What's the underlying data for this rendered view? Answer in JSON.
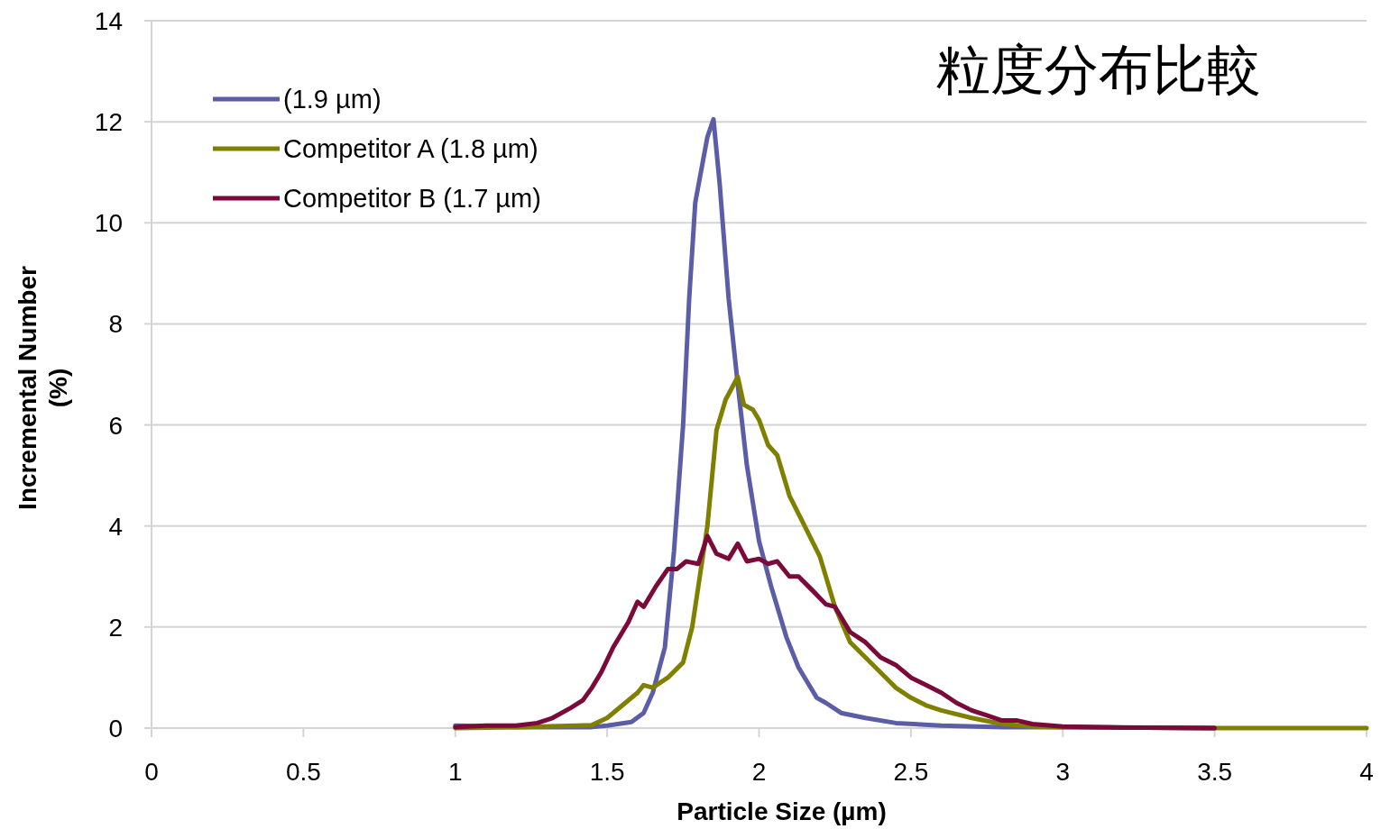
{
  "chart_data": {
    "type": "line",
    "title": "粒度分布比較",
    "xlabel": "Particle Size (µm)",
    "ylabel": "Incremental Number (%)",
    "xlim": [
      0,
      4
    ],
    "xticks": [
      0,
      0.5,
      1,
      1.5,
      2,
      2.5,
      3,
      3.5,
      4
    ],
    "ylim": [
      0,
      14
    ],
    "yticks": [
      0,
      2,
      4,
      6,
      8,
      10,
      12,
      14
    ],
    "grid": "y",
    "legend": "top left",
    "marker": "none",
    "line_style": "solid",
    "series": [
      {
        "name": "(1.9 µm)",
        "color": "#5b5ea6",
        "x": [
          1.0,
          1.2,
          1.45,
          1.5,
          1.58,
          1.62,
          1.65,
          1.69,
          1.72,
          1.75,
          1.77,
          1.79,
          1.83,
          1.85,
          1.87,
          1.9,
          1.93,
          1.96,
          2.0,
          2.04,
          2.09,
          2.13,
          2.19,
          2.22,
          2.27,
          2.35,
          2.45,
          2.6,
          2.8,
          3.0,
          3.5
        ],
        "values": [
          0.05,
          0.02,
          0.02,
          0.05,
          0.12,
          0.3,
          0.7,
          1.6,
          3.5,
          6,
          8.5,
          10.4,
          11.7,
          12.05,
          10.8,
          8.5,
          6.8,
          5.2,
          3.7,
          2.8,
          1.8,
          1.2,
          0.6,
          0.5,
          0.3,
          0.2,
          0.1,
          0.05,
          0.02,
          0.02,
          0
        ]
      },
      {
        "name": "Competitor A (1.8 µm)",
        "color": "#7f7f00",
        "x": [
          1.0,
          1.2,
          1.4,
          1.45,
          1.5,
          1.55,
          1.6,
          1.62,
          1.65,
          1.7,
          1.75,
          1.78,
          1.8,
          1.83,
          1.86,
          1.89,
          1.93,
          1.95,
          1.98,
          2.0,
          2.03,
          2.06,
          2.1,
          2.15,
          2.2,
          2.25,
          2.3,
          2.35,
          2.4,
          2.45,
          2.5,
          2.55,
          2.6,
          2.7,
          2.8,
          2.9,
          3.0,
          3.5,
          4.0
        ],
        "values": [
          0,
          0.02,
          0.05,
          0.06,
          0.2,
          0.45,
          0.7,
          0.85,
          0.8,
          1.0,
          1.3,
          2.0,
          2.8,
          4.0,
          5.9,
          6.5,
          6.95,
          6.4,
          6.3,
          6.1,
          5.6,
          5.4,
          4.6,
          4.0,
          3.4,
          2.4,
          1.7,
          1.4,
          1.1,
          0.8,
          0.6,
          0.45,
          0.35,
          0.2,
          0.08,
          0.03,
          0.02,
          0,
          0
        ]
      },
      {
        "name": "Competitor B (1.7 µm)",
        "color": "#7b0a3a",
        "x": [
          1.0,
          1.1,
          1.2,
          1.27,
          1.32,
          1.38,
          1.42,
          1.45,
          1.48,
          1.52,
          1.55,
          1.57,
          1.6,
          1.62,
          1.66,
          1.7,
          1.73,
          1.76,
          1.8,
          1.83,
          1.86,
          1.9,
          1.93,
          1.96,
          2.0,
          2.03,
          2.06,
          2.1,
          2.13,
          2.18,
          2.22,
          2.25,
          2.3,
          2.35,
          2.4,
          2.45,
          2.5,
          2.55,
          2.6,
          2.65,
          2.7,
          2.75,
          2.8,
          2.85,
          2.9,
          3.0,
          3.2,
          3.5
        ],
        "values": [
          0.02,
          0.05,
          0.05,
          0.1,
          0.2,
          0.4,
          0.55,
          0.8,
          1.1,
          1.6,
          1.9,
          2.1,
          2.5,
          2.4,
          2.8,
          3.15,
          3.15,
          3.3,
          3.25,
          3.8,
          3.45,
          3.35,
          3.65,
          3.3,
          3.35,
          3.25,
          3.3,
          3.0,
          3.0,
          2.7,
          2.45,
          2.4,
          1.9,
          1.7,
          1.4,
          1.25,
          1.0,
          0.85,
          0.7,
          0.5,
          0.35,
          0.25,
          0.15,
          0.15,
          0.08,
          0.03,
          0.01,
          0
        ]
      }
    ]
  }
}
